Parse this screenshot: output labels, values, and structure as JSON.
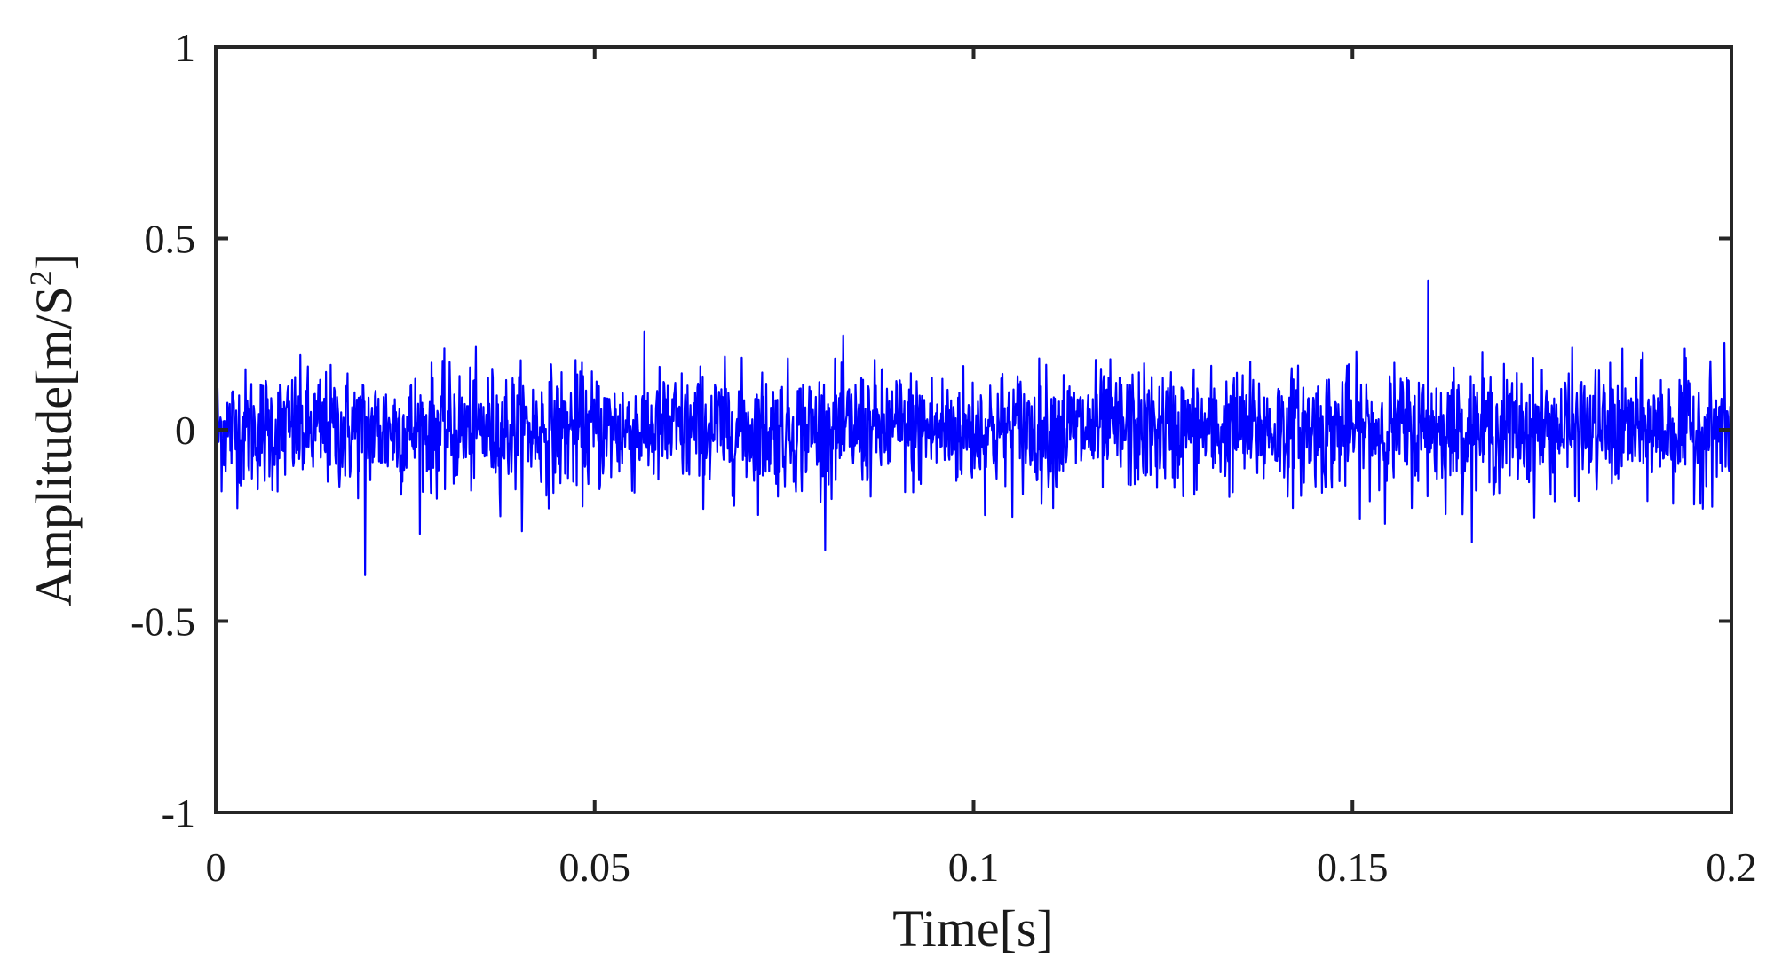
{
  "chart_data": {
    "type": "line",
    "title": "",
    "xlabel": "Time[s]",
    "ylabel": {
      "base": "Amplitude[m/S",
      "sup": "2",
      "tail": "]"
    },
    "xlim": [
      0,
      0.2
    ],
    "ylim": [
      -1,
      1
    ],
    "x_ticks": [
      "0",
      "0.05",
      "0.1",
      "0.15",
      "0.2"
    ],
    "y_ticks": [
      "1",
      "0.5",
      "0",
      "-0.5",
      "-1"
    ],
    "grid": false,
    "legend": "none",
    "series": [
      {
        "color": "#0000ff",
        "description_of_values": "dense random vibration noise centered at 0",
        "x_start": 0,
        "x_end": 0.2,
        "typical_peak_abs": 0.25,
        "max": 0.39,
        "max_at": 0.16,
        "min": -0.38,
        "min_at": 0.0197,
        "num_points": 2600
      }
    ]
  }
}
